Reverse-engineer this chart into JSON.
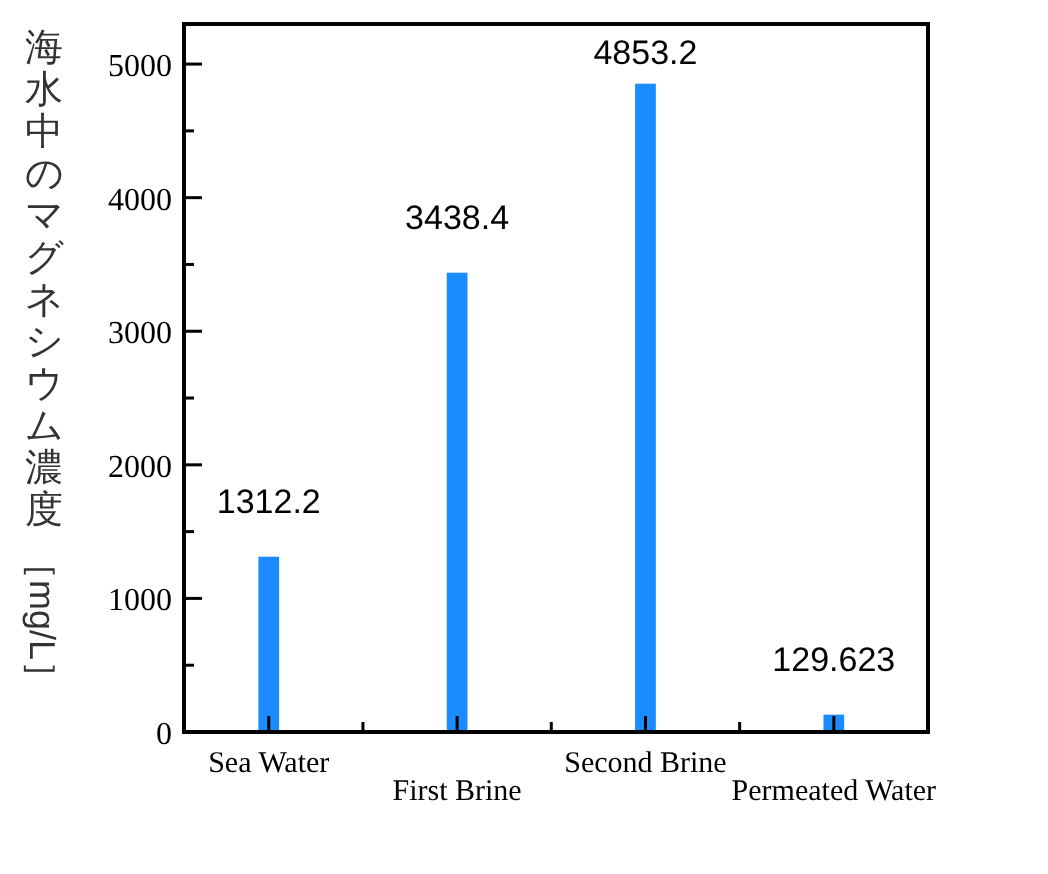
{
  "chart_data": {
    "type": "bar",
    "ylabel": "海水中のマグネシウム濃度［mg/L］",
    "categories": [
      "Sea Water",
      "First Brine",
      "Second Brine",
      "Permeated Water"
    ],
    "values": [
      1312.2,
      3438.4,
      4853.2,
      129.623
    ],
    "color": "#1a8cff",
    "ylim": [
      0,
      5300
    ],
    "yticks": [
      0,
      {
        "value": 500,
        "label": null
      },
      1000,
      {
        "value": 1500,
        "label": null
      },
      2000,
      {
        "value": 2500,
        "label": null
      },
      3000,
      {
        "value": 3500,
        "label": null
      },
      4000,
      {
        "value": 4500,
        "label": null
      },
      5000
    ],
    "data_labels": true
  }
}
